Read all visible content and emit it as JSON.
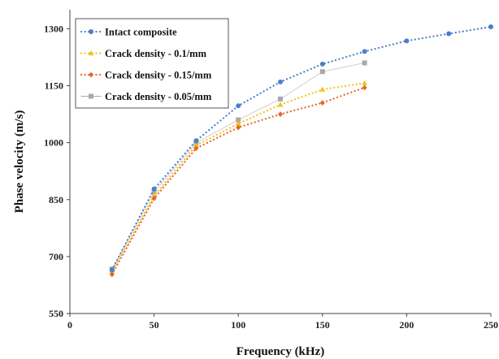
{
  "chart_data": {
    "type": "line",
    "xlabel": "Frequency (kHz)",
    "ylabel": "Phase velocity (m/s)",
    "xlim": [
      0,
      250
    ],
    "ylim": [
      550,
      1350
    ],
    "xticks": [
      0,
      50,
      100,
      150,
      200,
      250
    ],
    "yticks": [
      550,
      700,
      850,
      1000,
      1150,
      1300
    ],
    "grid": false,
    "legend_position": "top-left",
    "series": [
      {
        "name": "Intact composite",
        "color": "#4a7fc9",
        "marker": "circle",
        "line": "dotted",
        "x": [
          25,
          50,
          75,
          100,
          125,
          150,
          175,
          200,
          225,
          250
        ],
        "y": [
          665,
          878,
          1005,
          1097,
          1160,
          1207,
          1240,
          1268,
          1287,
          1305
        ]
      },
      {
        "name": "Crack density - 0.1/mm",
        "color": "#f2c21b",
        "marker": "triangle",
        "line": "dotted",
        "x": [
          25,
          50,
          75,
          100,
          125,
          150,
          175
        ],
        "y": [
          660,
          860,
          993,
          1050,
          1100,
          1140,
          1157
        ]
      },
      {
        "name": "Crack density - 0.15/mm",
        "color": "#e2672a",
        "marker": "diamond",
        "line": "dotted",
        "x": [
          25,
          50,
          75,
          100,
          125,
          150,
          175
        ],
        "y": [
          653,
          853,
          985,
          1040,
          1075,
          1105,
          1145
        ]
      },
      {
        "name": "Crack density - 0.05/mm",
        "color": "#a8a8a8",
        "marker": "square",
        "line": "solid",
        "x": [
          25,
          50,
          75,
          100,
          125,
          150,
          175
        ],
        "y": [
          667,
          870,
          1000,
          1060,
          1115,
          1187,
          1210
        ]
      }
    ]
  }
}
